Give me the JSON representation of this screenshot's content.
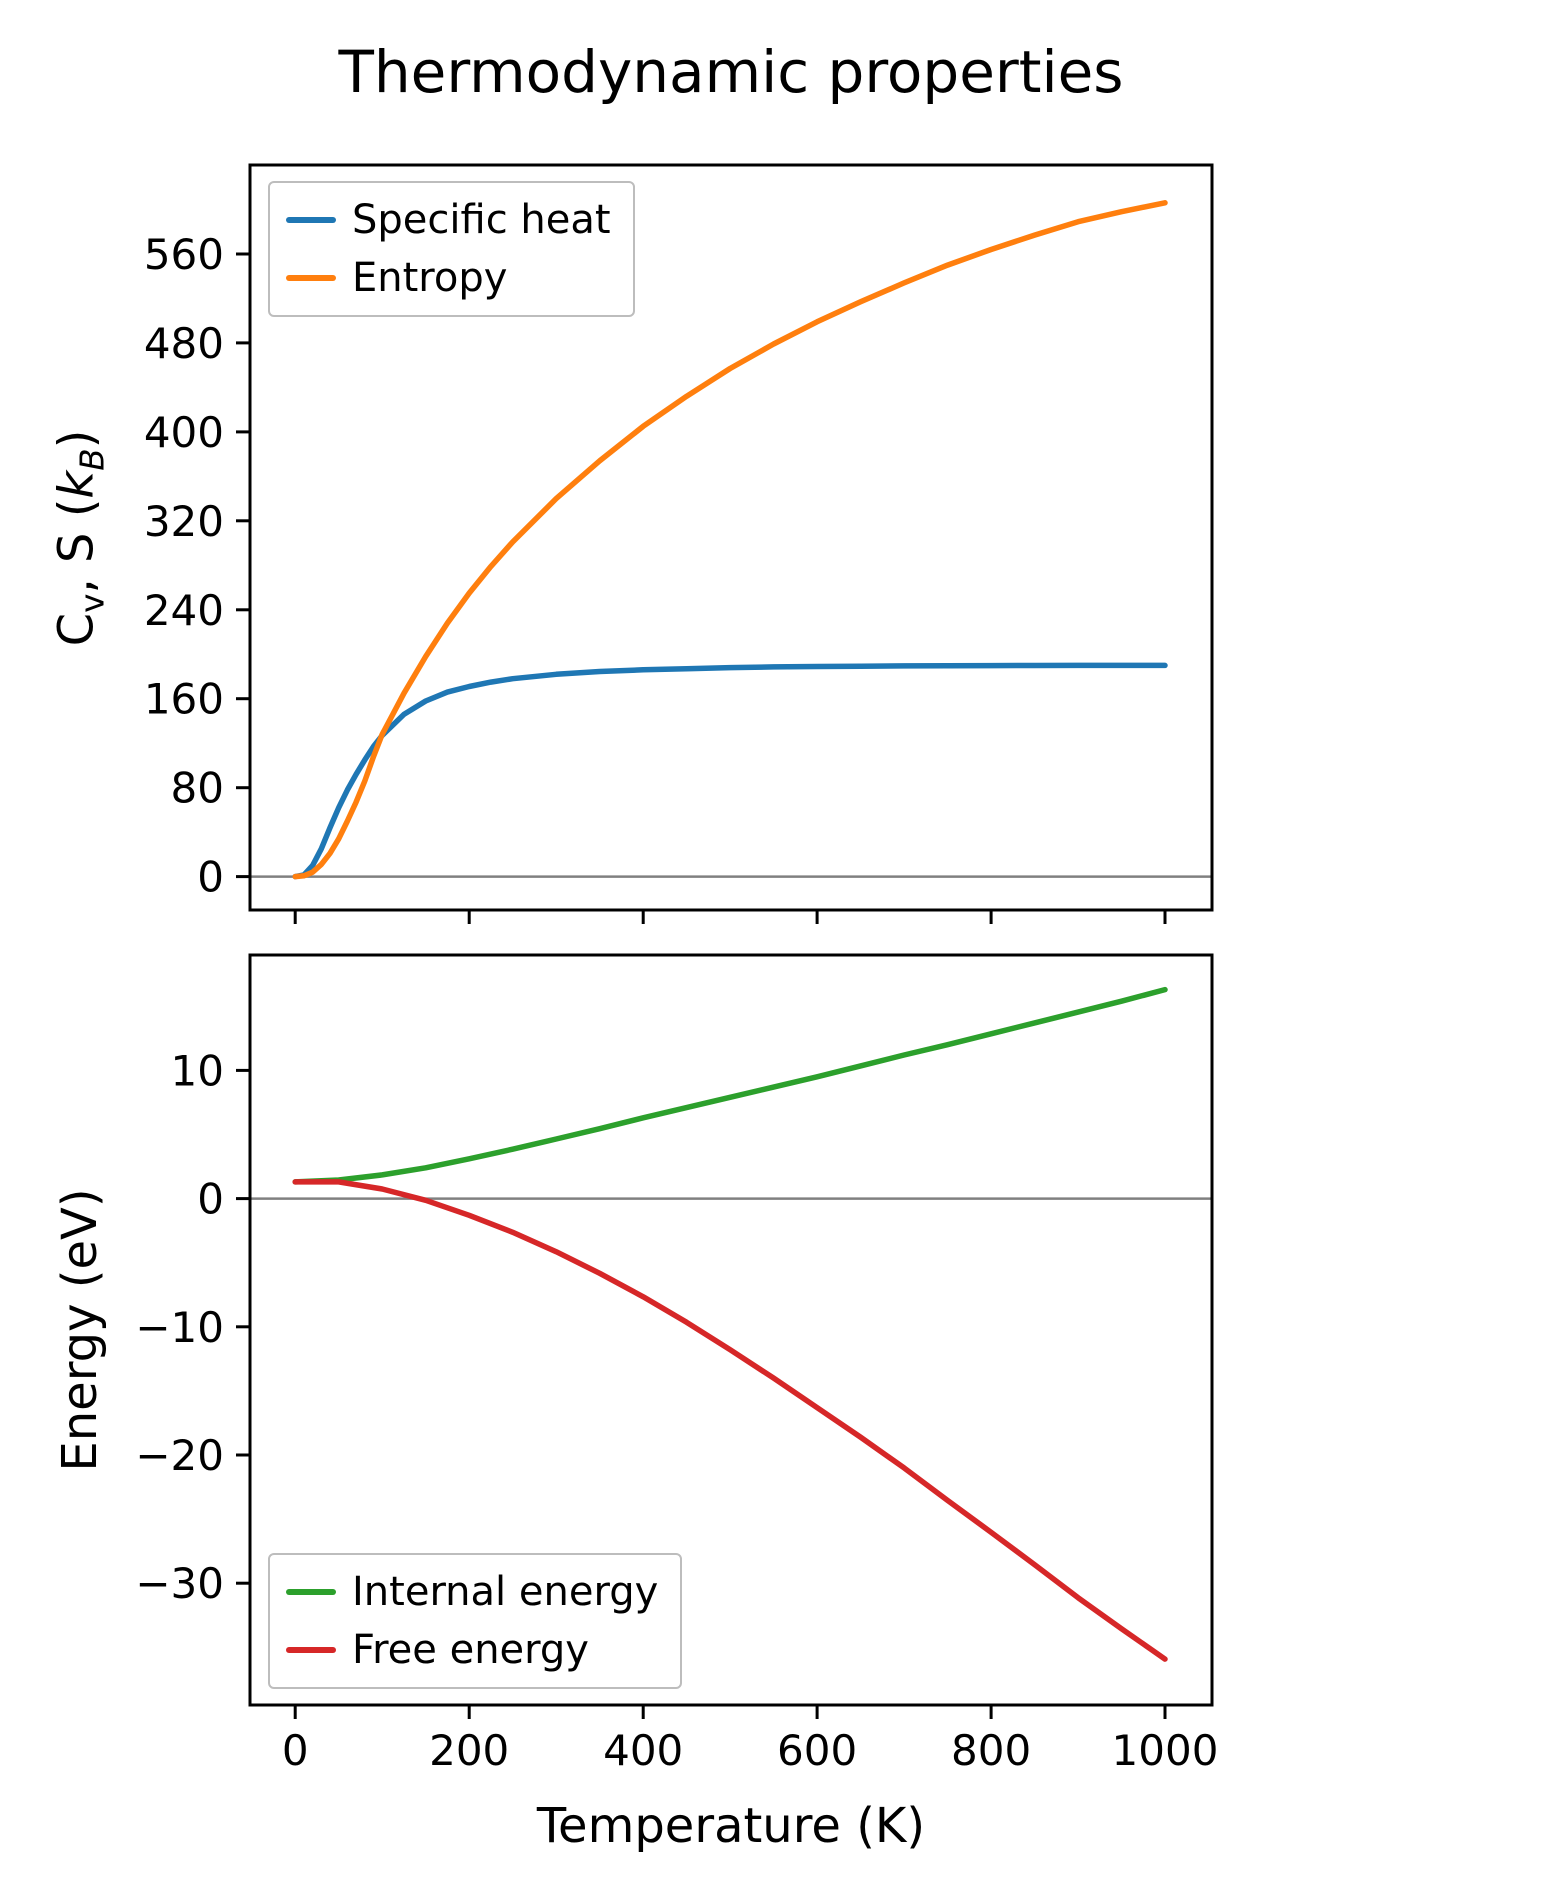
{
  "chart_data": [
    {
      "type": "line",
      "title": "Thermodynamic properties",
      "ylabel": "Cv, S (kB)",
      "ylabel_parts": [
        {
          "text": "C"
        },
        {
          "text": "v",
          "sub": true
        },
        {
          "text": ", S ("
        },
        {
          "text": "k",
          "italic": true
        },
        {
          "text": "B",
          "sub": true,
          "italic": true
        },
        {
          "text": ")"
        }
      ],
      "xlim": [
        -52,
        1054
      ],
      "ylim": [
        -30,
        640
      ],
      "yticks": [
        0,
        80,
        160,
        240,
        320,
        400,
        480,
        560
      ],
      "xticks": [
        0,
        200,
        400,
        600,
        800,
        1000
      ],
      "show_xtick_labels": false,
      "zero_line": 0,
      "grid": false,
      "legend": {
        "position": "upper-left"
      },
      "x": [
        0,
        10,
        20,
        30,
        40,
        50,
        60,
        70,
        80,
        90,
        100,
        125,
        150,
        175,
        200,
        225,
        250,
        300,
        350,
        400,
        450,
        500,
        550,
        600,
        650,
        700,
        750,
        800,
        850,
        900,
        950,
        1000
      ],
      "series": [
        {
          "name": "Specific heat",
          "color": "#1f77b4",
          "values": [
            0,
            1.5,
            10,
            25,
            44,
            62,
            78,
            92,
            105,
            117,
            127,
            146,
            158,
            166,
            171,
            175,
            178,
            182,
            184.5,
            186,
            187,
            188,
            188.6,
            189,
            189.3,
            189.5,
            189.7,
            189.8,
            189.9,
            190,
            190,
            190
          ]
        },
        {
          "name": "Entropy",
          "color": "#ff7f0e",
          "values": [
            0,
            0.8,
            4,
            11,
            21,
            34,
            50,
            67,
            86,
            108,
            128,
            165,
            198,
            228,
            255,
            279,
            301,
            340,
            374,
            405,
            432,
            457,
            479,
            499,
            517,
            534,
            550,
            564,
            577,
            589,
            598,
            606
          ]
        }
      ]
    },
    {
      "type": "line",
      "ylabel": "Energy (eV)",
      "ylabel_parts": [
        {
          "text": "Energy (eV)"
        }
      ],
      "xlabel": "Temperature (K)",
      "xlim": [
        -52,
        1054
      ],
      "ylim": [
        -39.5,
        19
      ],
      "yticks": [
        10,
        0,
        -10,
        -20,
        -30
      ],
      "xticks": [
        0,
        200,
        400,
        600,
        800,
        1000
      ],
      "show_xtick_labels": true,
      "zero_line": 0,
      "grid": false,
      "legend": {
        "position": "lower-left"
      },
      "x": [
        0,
        50,
        100,
        150,
        200,
        250,
        300,
        350,
        400,
        450,
        500,
        550,
        600,
        650,
        700,
        750,
        800,
        850,
        900,
        950,
        1000
      ],
      "series": [
        {
          "name": "Internal energy",
          "color": "#2ca02c",
          "values": [
            1.3,
            1.45,
            1.85,
            2.4,
            3.1,
            3.85,
            4.65,
            5.45,
            6.3,
            7.1,
            7.9,
            8.7,
            9.5,
            10.35,
            11.2,
            12.0,
            12.85,
            13.7,
            14.55,
            15.4,
            16.3
          ]
        },
        {
          "name": "Free energy",
          "color": "#d62728",
          "values": [
            1.3,
            1.3,
            0.75,
            -0.13,
            -1.3,
            -2.63,
            -4.14,
            -5.83,
            -7.66,
            -9.65,
            -11.79,
            -14.0,
            -16.3,
            -18.61,
            -21.01,
            -23.54,
            -26.03,
            -28.56,
            -31.13,
            -33.55,
            -35.92
          ]
        }
      ]
    }
  ]
}
